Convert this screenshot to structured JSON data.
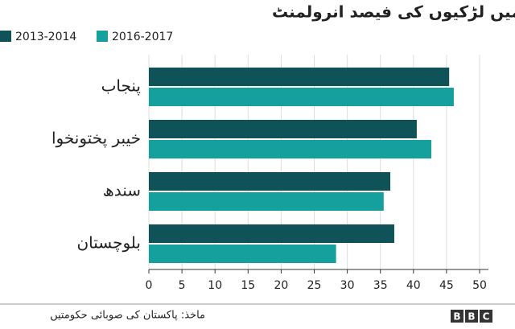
{
  "chart_data": {
    "type": "hbar",
    "title": "صوبوں میں لڑکیوں کی  فیصد انرولمنٹ",
    "categories": [
      "پنجاب",
      "خیبر پختونخوا",
      "سندھ",
      "بلوچستان"
    ],
    "series": [
      {
        "name": "2013-2014",
        "color": "#0f5257",
        "values": [
          45.4,
          40.5,
          36.5,
          37.1
        ]
      },
      {
        "name": "2016-2017",
        "color": "#15a09e",
        "values": [
          46.1,
          42.7,
          35.5,
          28.3
        ]
      }
    ],
    "xlim": [
      0,
      50
    ],
    "xticks": [
      0,
      5,
      10,
      15,
      20,
      25,
      30,
      35,
      40,
      45,
      50
    ],
    "grid": true,
    "source": "ماخذ: پاکستان کی صوبائی حکومتیں",
    "logo": [
      "B",
      "B",
      "C"
    ]
  }
}
